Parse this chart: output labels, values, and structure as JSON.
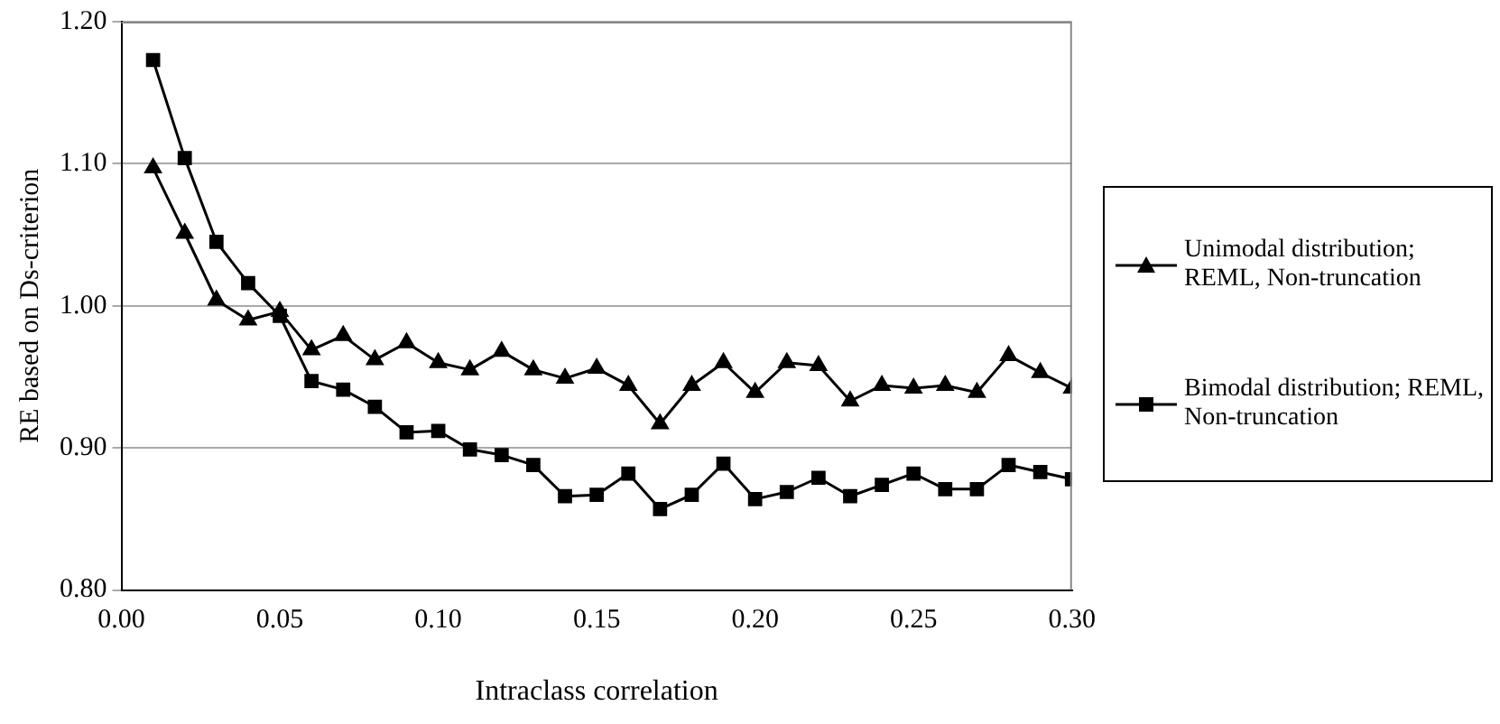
{
  "chart_data": {
    "type": "line",
    "xlabel": "Intraclass correlation",
    "ylabel": "RE based on Ds-criterion",
    "x": [
      0.01,
      0.02,
      0.03,
      0.04,
      0.05,
      0.06,
      0.07,
      0.08,
      0.09,
      0.1,
      0.11,
      0.12,
      0.13,
      0.14,
      0.15,
      0.16,
      0.17,
      0.18,
      0.19,
      0.2,
      0.21,
      0.22,
      0.23,
      0.24,
      0.25,
      0.26,
      0.27,
      0.28,
      0.29,
      0.3
    ],
    "series": [
      {
        "name": "Unimodal distribution; REML, Non-truncation",
        "color": "#000000",
        "marker": "triangle",
        "values": [
          1.097,
          1.051,
          1.004,
          0.99,
          0.996,
          0.969,
          0.979,
          0.962,
          0.974,
          0.96,
          0.955,
          0.968,
          0.955,
          0.949,
          0.956,
          0.944,
          0.917,
          0.944,
          0.96,
          0.939,
          0.96,
          0.958,
          0.933,
          0.944,
          0.942,
          0.944,
          0.939,
          0.965,
          0.953,
          0.942
        ]
      },
      {
        "name": "Bimodal distribution; REML, Non-truncation",
        "color": "#000000",
        "marker": "square",
        "values": [
          1.173,
          1.104,
          1.045,
          1.016,
          0.993,
          0.947,
          0.941,
          0.929,
          0.911,
          0.912,
          0.899,
          0.895,
          0.888,
          0.866,
          0.867,
          0.882,
          0.857,
          0.867,
          0.889,
          0.864,
          0.869,
          0.879,
          0.866,
          0.874,
          0.882,
          0.871,
          0.871,
          0.888,
          0.883,
          0.878
        ]
      }
    ],
    "xlim": [
      0,
      0.3
    ],
    "xticks": [
      {
        "value": 0,
        "label": "0.00"
      },
      {
        "value": 0.05,
        "label": "0.05"
      },
      {
        "value": 0.1,
        "label": "0.10"
      },
      {
        "value": 0.15,
        "label": "0.15"
      },
      {
        "value": 0.2,
        "label": "0.20"
      },
      {
        "value": 0.25,
        "label": "0.25"
      },
      {
        "value": 0.3,
        "label": "0.30"
      }
    ],
    "ylim": [
      0.8,
      1.2
    ],
    "yticks": [
      {
        "value": 0.8,
        "label": "0.80"
      },
      {
        "value": 0.9,
        "label": "0.90"
      },
      {
        "value": 1.0,
        "label": "1.00"
      },
      {
        "value": 1.1,
        "label": "1.10"
      },
      {
        "value": 1.2,
        "label": "1.20"
      }
    ],
    "grid": "y",
    "legend": "right",
    "line_style": "solid"
  }
}
